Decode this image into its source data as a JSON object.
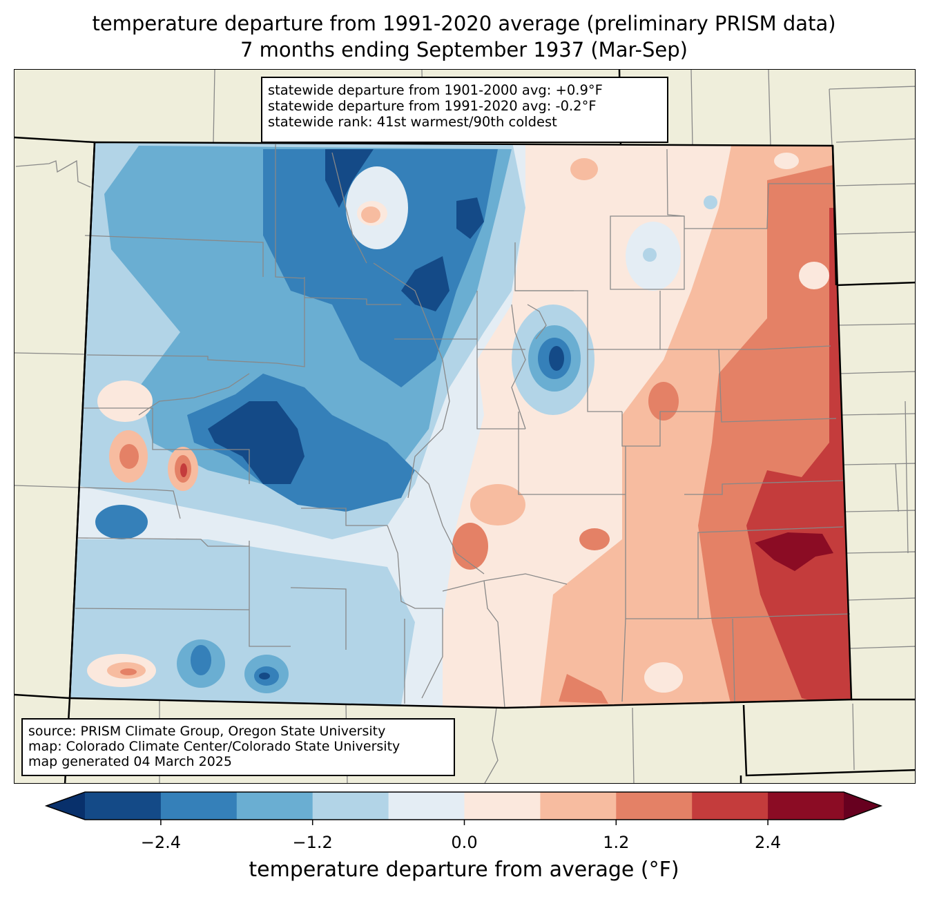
{
  "header": {
    "title_line1": "temperature departure from 1991-2020 average (preliminary PRISM data)",
    "title_line2": "7 months ending September 1937 (Mar-Sep)"
  },
  "stats_box": {
    "line1": "statewide departure from 1901-2000 avg: +0.9°F",
    "line2": "statewide departure from 1991-2020 avg: -0.2°F",
    "line3": "statewide rank: 41st warmest/90th coldest"
  },
  "source_box": {
    "line1": "source: PRISM Climate Group, Oregon State University",
    "line2": "map: Colorado Climate Center/Colorado State University",
    "line3": "map generated 04 March 2025"
  },
  "colorbar": {
    "label": "temperature departure from average (°F)",
    "ticks": [
      "−2.4",
      "−1.2",
      "0.0",
      "1.2",
      "2.4"
    ],
    "tick_values": [
      -2.4,
      -1.2,
      0.0,
      1.2,
      2.4
    ],
    "levels": [
      -3.0,
      -2.4,
      -1.8,
      -1.2,
      -0.6,
      0.0,
      0.6,
      1.2,
      1.8,
      2.4,
      3.0
    ],
    "extend": "both",
    "colors": [
      "#144a87",
      "#3580b9",
      "#6aaed2",
      "#b2d4e7",
      "#e4edf4",
      "#fbe8dd",
      "#f7bca0",
      "#e48166",
      "#c43c3c",
      "#8b0c24"
    ],
    "under_color": "#08306b",
    "over_color": "#67001f"
  },
  "map_colors": {
    "land_background": "#efeedb",
    "state_border": "#000000",
    "county_border": "#888888"
  },
  "chart_data": {
    "type": "heatmap",
    "title": "temperature departure from 1991-2020 average (preliminary PRISM data) — 7 months ending September 1937 (Mar-Sep)",
    "region": "Colorado",
    "units": "°F",
    "colorbar_label": "temperature departure from average (°F)",
    "colorbar_ticks": [
      -2.4,
      -1.2,
      0.0,
      1.2,
      2.4
    ],
    "levels": [
      -3.0,
      -2.4,
      -1.8,
      -1.2,
      -0.6,
      0.0,
      0.6,
      1.2,
      1.8,
      2.4,
      3.0
    ],
    "statewide_departure_1901_2000": 0.9,
    "statewide_departure_1991_2020": -0.2,
    "statewide_rank_warmest": 41,
    "statewide_rank_coldest": 90,
    "regional_pattern": [
      {
        "region": "northwest",
        "approx_value": -1.0
      },
      {
        "region": "north-central mountains",
        "approx_value": -2.4
      },
      {
        "region": "central mountains",
        "approx_value": -2.4
      },
      {
        "region": "west-central (local warm spots)",
        "approx_value": 1.5
      },
      {
        "region": "southwest",
        "approx_value": -0.8
      },
      {
        "region": "front range / Denver area",
        "approx_value": -2.4
      },
      {
        "region": "northeast plains",
        "approx_value": 0.4
      },
      {
        "region": "eastern plains",
        "approx_value": 1.5
      },
      {
        "region": "far east-southeast",
        "approx_value": 2.4
      },
      {
        "region": "southeast",
        "approx_value": 1.0
      },
      {
        "region": "south-central",
        "approx_value": 0.3
      }
    ]
  }
}
